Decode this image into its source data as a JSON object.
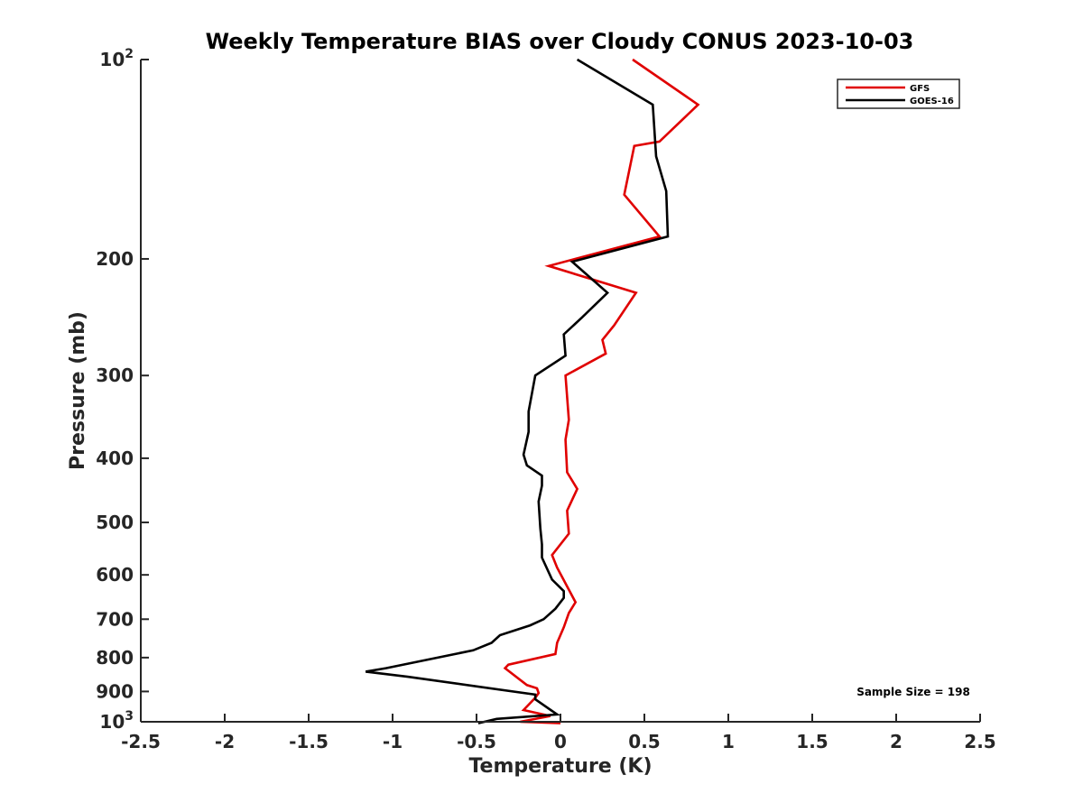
{
  "chart_data": {
    "type": "line",
    "title": "Weekly Temperature BIAS over Cloudy CONUS 2023-10-03",
    "xlabel": "Temperature (K)",
    "ylabel": "Pressure (mb)",
    "xlim": [
      -2.5,
      2.5
    ],
    "ylim": [
      1000,
      100
    ],
    "yscale": "log",
    "y_reversed": true,
    "grid": false,
    "legend_position": "top-right",
    "x_ticks": [
      -2.5,
      -2,
      -1.5,
      -1,
      -0.5,
      0,
      0.5,
      1,
      1.5,
      2,
      2.5
    ],
    "x_tick_labels": [
      "-2.5",
      "-2",
      "-1.5",
      "-1",
      "-0.5",
      "0",
      "0.5",
      "1",
      "1.5",
      "2",
      "2.5"
    ],
    "y_ticks": [
      100,
      200,
      300,
      400,
      500,
      600,
      700,
      800,
      900,
      1000
    ],
    "y_tick_labels": [
      {
        "base": "10",
        "exp": "2"
      },
      {
        "base": "200",
        "exp": ""
      },
      {
        "base": "300",
        "exp": ""
      },
      {
        "base": "400",
        "exp": ""
      },
      {
        "base": "500",
        "exp": ""
      },
      {
        "base": "600",
        "exp": ""
      },
      {
        "base": "700",
        "exp": ""
      },
      {
        "base": "800",
        "exp": ""
      },
      {
        "base": "900",
        "exp": ""
      },
      {
        "base": "10",
        "exp": "3"
      }
    ],
    "series": [
      {
        "name": "GFS",
        "color": "#e00000",
        "points": [
          [
            0.43,
            100
          ],
          [
            0.82,
            117
          ],
          [
            0.59,
            133
          ],
          [
            0.44,
            135
          ],
          [
            0.38,
            160
          ],
          [
            0.59,
            185
          ],
          [
            -0.07,
            205
          ],
          [
            0.45,
            225
          ],
          [
            0.32,
            252
          ],
          [
            0.25,
            265
          ],
          [
            0.27,
            278
          ],
          [
            0.03,
            300
          ],
          [
            0.05,
            350
          ],
          [
            0.03,
            375
          ],
          [
            0.04,
            420
          ],
          [
            0.1,
            445
          ],
          [
            0.04,
            480
          ],
          [
            0.05,
            520
          ],
          [
            -0.05,
            560
          ],
          [
            -0.02,
            585
          ],
          [
            0.09,
            660
          ],
          [
            0.05,
            685
          ],
          [
            0.02,
            720
          ],
          [
            -0.02,
            760
          ],
          [
            -0.03,
            790
          ],
          [
            -0.31,
            820
          ],
          [
            -0.33,
            830
          ],
          [
            -0.2,
            880
          ],
          [
            -0.14,
            890
          ],
          [
            -0.13,
            905
          ],
          [
            -0.15,
            920
          ],
          [
            -0.22,
            960
          ],
          [
            -0.06,
            980
          ],
          [
            -0.24,
            1000
          ],
          [
            0.0,
            1005
          ]
        ]
      },
      {
        "name": "GOES-16",
        "color": "#000000",
        "points": [
          [
            0.1,
            100
          ],
          [
            0.55,
            117
          ],
          [
            0.57,
            140
          ],
          [
            0.63,
            158
          ],
          [
            0.64,
            185
          ],
          [
            0.07,
            202
          ],
          [
            0.28,
            225
          ],
          [
            0.13,
            245
          ],
          [
            0.02,
            260
          ],
          [
            0.03,
            280
          ],
          [
            -0.15,
            300
          ],
          [
            -0.19,
            340
          ],
          [
            -0.19,
            365
          ],
          [
            -0.22,
            395
          ],
          [
            -0.2,
            410
          ],
          [
            -0.11,
            425
          ],
          [
            -0.11,
            440
          ],
          [
            -0.13,
            465
          ],
          [
            -0.12,
            510
          ],
          [
            -0.11,
            540
          ],
          [
            -0.11,
            565
          ],
          [
            -0.05,
            610
          ],
          [
            0.02,
            635
          ],
          [
            0.02,
            650
          ],
          [
            -0.03,
            675
          ],
          [
            -0.1,
            700
          ],
          [
            -0.18,
            715
          ],
          [
            -0.36,
            740
          ],
          [
            -0.41,
            760
          ],
          [
            -0.52,
            780
          ],
          [
            -1.04,
            830
          ],
          [
            -1.16,
            840
          ],
          [
            -0.91,
            855
          ],
          [
            -0.15,
            910
          ],
          [
            -0.15,
            925
          ],
          [
            -0.02,
            975
          ],
          [
            -0.38,
            990
          ],
          [
            -0.49,
            1005
          ]
        ]
      }
    ],
    "annotation": "Sample Size = 198"
  }
}
